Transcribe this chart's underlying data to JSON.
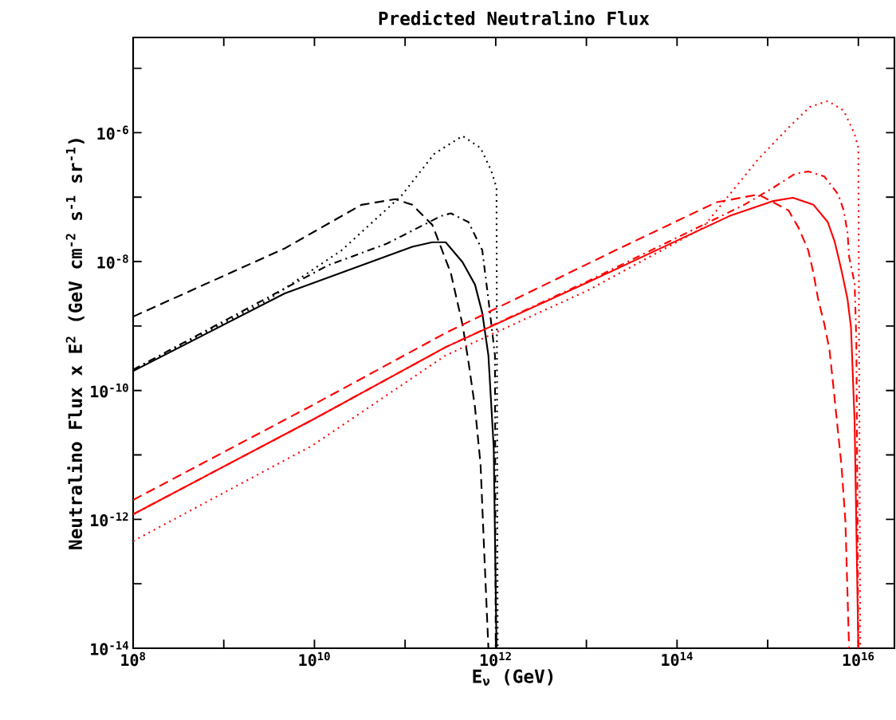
{
  "chart_data": {
    "type": "line",
    "title": "Predicted Neutralino Flux",
    "xlabel": "E$_{ν}$ (GeV)",
    "ylabel": "Neutralino Flux x E$^{2}$ (GeV cm$^{-2}$ s$^{-1}$ sr$^{-1}$)",
    "log": "xy",
    "xlim": [
      100000000.0,
      2.5e+16
    ],
    "ylim": [
      1e-14,
      3e-05
    ],
    "xticks": [
      {
        "value": 100000000.0,
        "label": "10$^{8}$"
      },
      {
        "value": 1000000000.0,
        "label": null
      },
      {
        "value": 10000000000.0,
        "label": "10$^{10}$"
      },
      {
        "value": 100000000000.0,
        "label": null
      },
      {
        "value": 1000000000000.0,
        "label": "10$^{12}$"
      },
      {
        "value": 10000000000000.0,
        "label": null
      },
      {
        "value": 100000000000000.0,
        "label": "10$^{14}$"
      },
      {
        "value": 1000000000000000.0,
        "label": null
      },
      {
        "value": 1e+16,
        "label": "10$^{16}$"
      }
    ],
    "yticks": [
      {
        "value": 1e-14,
        "label": "10$^{-14}$"
      },
      {
        "value": 1e-13,
        "label": null
      },
      {
        "value": 1e-12,
        "label": "10$^{-12}$"
      },
      {
        "value": 1e-11,
        "label": null
      },
      {
        "value": 1e-10,
        "label": "10$^{-10}$"
      },
      {
        "value": 1e-09,
        "label": null
      },
      {
        "value": 1e-08,
        "label": "10$^{-8}$"
      },
      {
        "value": 1e-07,
        "label": null
      },
      {
        "value": 1e-06,
        "label": "10$^{-6}$"
      },
      {
        "value": 1e-05,
        "label": null
      }
    ],
    "series": [
      {
        "color": "#000000",
        "line_style": "solid",
        "x": [
          100000000.0,
          4700000000.0,
          120000000000.0,
          200000000000.0,
          280000000000.0,
          430000000000.0,
          590000000000.0,
          710000000000.0,
          830000000000.0,
          950000000000.0,
          1020000000000.0
        ],
        "values": [
          2e-10,
          3.2e-09,
          1.7e-08,
          2e-08,
          2e-08,
          9.8e-09,
          4.4e-09,
          1.6e-09,
          3.5e-10,
          1.3e-11,
          1e-14
        ]
      },
      {
        "color": "#000000",
        "line_style": "dashed",
        "x": [
          100000000.0,
          4700000000.0,
          33000000000.0,
          78000000000.0,
          120000000000.0,
          200000000000.0,
          320000000000.0,
          430000000000.0,
          500000000000.0,
          590000000000.0,
          680000000000.0,
          740000000000.0,
          830000000000.0
        ],
        "values": [
          1.4e-09,
          1.6e-08,
          7.6e-08,
          9.3e-08,
          7.6e-08,
          3.7e-08,
          6.6e-09,
          1.05e-09,
          2.8e-10,
          5.5e-11,
          7.1e-12,
          4.1e-13,
          1e-14
        ]
      },
      {
        "color": "#000000",
        "line_style": "dotted",
        "x": [
          100000000.0,
          3000000000.0,
          20000000000.0,
          91000000000.0,
          210000000000.0,
          430000000000.0,
          680000000000.0,
          890000000000.0,
          1020000000000.0,
          1050000000000.0
        ],
        "values": [
          2.1e-10,
          2.5e-09,
          1.5e-08,
          1.05e-07,
          4.7e-07,
          8.9e-07,
          5.8e-07,
          2.6e-07,
          1.4e-07,
          1e-14
        ]
      },
      {
        "color": "#000000",
        "line_style": "dashdot",
        "x": [
          100000000.0,
          14000000000.0,
          63000000000.0,
          250000000000.0,
          320000000000.0,
          500000000000.0,
          710000000000.0,
          830000000000.0,
          980000000000.0,
          1000000000000.0
        ],
        "values": [
          2.1e-10,
          8.7e-09,
          1.9e-08,
          5.1e-08,
          5.6e-08,
          4.1e-08,
          1.5e-08,
          2.6e-09,
          3.5e-10,
          1e-14
        ]
      },
      {
        "color": "#ff0000",
        "line_style": "solid",
        "x": [
          100000000.0,
          9500000000.0,
          280000000000.0,
          10500000000000.0,
          380000000000000.0,
          1150000000000000.0,
          1900000000000000.0,
          3200000000000000.0,
          4600000000000000.0,
          5500000000000000.0,
          6500000000000000.0,
          7600000000000000.0,
          8300000000000000.0,
          9100000000000000.0,
          1e+16
        ],
        "values": [
          1.2e-12,
          3.5e-11,
          4.7e-10,
          4.8e-09,
          5.1e-08,
          8.7e-08,
          9.8e-08,
          7.6e-08,
          4.1e-08,
          2e-08,
          7.4e-09,
          2.6e-09,
          9.5e-10,
          3.2e-11,
          1e-14
        ]
      },
      {
        "color": "#ff0000",
        "line_style": "dashed",
        "x": [
          100000000.0,
          9500000000.0,
          280000000000.0,
          21000000000000.0,
          270000000000000.0,
          790000000000000.0,
          1700000000000000.0,
          2200000000000000.0,
          2800000000000000.0,
          3200000000000000.0,
          3600000000000000.0,
          4200000000000000.0,
          4800000000000000.0,
          5200000000000000.0,
          6500000000000000.0,
          7200000000000000.0,
          7900000000000000.0
        ],
        "values": [
          2e-12,
          5.9e-11,
          7.8e-10,
          1.5e-08,
          8.3e-08,
          1.1e-07,
          6.2e-08,
          3.3e-08,
          1.5e-08,
          6.6e-09,
          2.6e-09,
          1.1e-09,
          4.3e-10,
          1.5e-10,
          7.1e-12,
          9.3e-13,
          1e-14
        ]
      },
      {
        "color": "#ff0000",
        "line_style": "dotted",
        "x": [
          100000000.0,
          9500000000.0,
          280000000000.0,
          10500000000000.0,
          190000000000000.0,
          380000000000000.0,
          790000000000000.0,
          1700000000000000.0,
          2900000000000000.0,
          4600000000000000.0,
          6900000000000000.0,
          9100000000000000.0,
          1e+16,
          1.05e+16
        ],
        "values": [
          4.6e-13,
          1.4e-11,
          3.5e-10,
          3.6e-09,
          3.3e-08,
          1.1e-07,
          3.9e-07,
          1.2e-06,
          2.5e-06,
          3.1e-06,
          2.2e-06,
          9.5e-07,
          5.8e-07,
          1e-14
        ]
      },
      {
        "color": "#ff0000",
        "line_style": "dashdot",
        "x": [
          100000000.0,
          9500000000.0,
          280000000000.0,
          10500000000000.0,
          550000000000000.0,
          1150000000000000.0,
          2000000000000000.0,
          2800000000000000.0,
          4200000000000000.0,
          6000000000000000.0,
          6900000000000000.0,
          7600000000000000.0,
          7900000000000000.0,
          9100000000000000.0,
          9500000000000000.0,
          1e+16
        ],
        "values": [
          1.2e-12,
          3.5e-11,
          4.7e-10,
          5e-09,
          7.6e-08,
          1.4e-07,
          2.3e-07,
          2.5e-07,
          2.1e-07,
          1.1e-07,
          6.2e-08,
          2.8e-08,
          1.2e-08,
          4.6e-09,
          5.9e-10,
          1e-14
        ]
      }
    ]
  }
}
